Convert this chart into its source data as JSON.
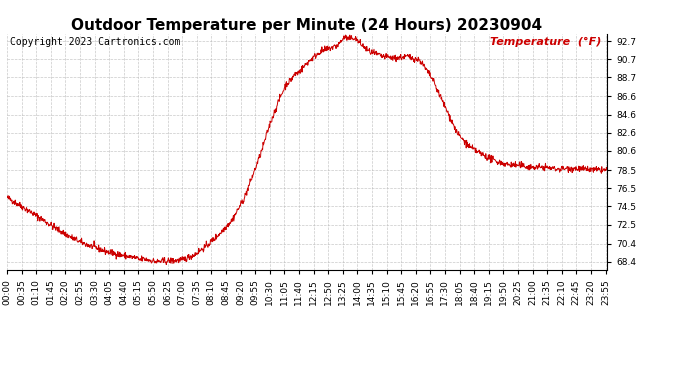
{
  "title": "Outdoor Temperature per Minute (24 Hours) 20230904",
  "copyright_text": "Copyright 2023 Cartronics.com",
  "legend_text": "Temperature  (°F)",
  "line_color": "#cc0000",
  "background_color": "#ffffff",
  "grid_color": "#bbbbbb",
  "yticks": [
    68.4,
    70.4,
    72.5,
    74.5,
    76.5,
    78.5,
    80.6,
    82.6,
    84.6,
    86.6,
    88.7,
    90.7,
    92.7
  ],
  "ylim": [
    67.5,
    93.5
  ],
  "total_minutes": 1440,
  "x_tick_interval": 35,
  "copyright_color": "#000000",
  "legend_color": "#cc0000",
  "title_fontsize": 11,
  "tick_fontsize": 6.5,
  "copyright_fontsize": 7,
  "legend_fontsize": 8,
  "key_x": [
    0,
    60,
    120,
    150,
    180,
    210,
    240,
    270,
    300,
    330,
    355,
    360,
    365,
    390,
    420,
    450,
    480,
    510,
    540,
    570,
    590,
    610,
    630,
    655,
    670,
    690,
    720,
    750,
    780,
    810,
    840,
    870,
    900,
    930,
    960,
    990,
    1020,
    1050,
    1080,
    1110,
    1140,
    1170,
    1200,
    1230,
    1260,
    1290,
    1320,
    1350,
    1380,
    1410,
    1439
  ],
  "key_y": [
    75.5,
    73.8,
    72.0,
    71.2,
    70.5,
    70.0,
    69.5,
    69.2,
    68.9,
    68.7,
    68.45,
    68.4,
    68.45,
    68.5,
    68.6,
    69.2,
    70.2,
    71.5,
    73.0,
    75.5,
    78.0,
    80.5,
    83.5,
    86.5,
    88.0,
    88.7,
    90.3,
    91.5,
    92.0,
    92.5,
    92.7,
    91.5,
    91.0,
    90.8,
    91.0,
    90.6,
    88.5,
    85.5,
    82.5,
    81.0,
    80.2,
    79.5,
    79.1,
    79.0,
    78.8,
    78.8,
    78.6,
    78.7,
    78.6,
    78.5,
    78.5
  ],
  "noise_seed": 42,
  "noise_std": 0.18,
  "figsize": [
    6.9,
    3.75
  ],
  "dpi": 100
}
